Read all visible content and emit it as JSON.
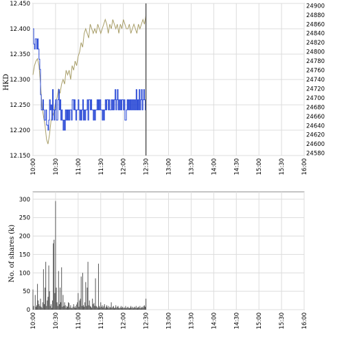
{
  "chart_data": [
    {
      "type": "line",
      "ylabel": "HKD",
      "xlabel": "",
      "x_ticks": [
        "10:00",
        "10:30",
        "11:00",
        "11:30",
        "12:00",
        "12:30",
        "13:00",
        "13:30",
        "14:00",
        "14:30",
        "15:00",
        "15:30",
        "16:00"
      ],
      "y_left_ticks": [
        "12.150",
        "12.200",
        "12.250",
        "12.300",
        "12.350",
        "12.400",
        "12.450"
      ],
      "y_right_ticks": [
        "24580",
        "24600",
        "24620",
        "24640",
        "24660",
        "24680",
        "24700",
        "24720",
        "24740",
        "24760",
        "24780",
        "24800",
        "24820",
        "24840",
        "24860",
        "24880",
        "24900"
      ],
      "ylim_left": [
        12.15,
        12.45
      ],
      "ylim_right": [
        24575,
        24905
      ],
      "xlim_minutes": [
        600,
        960
      ],
      "grid": true,
      "colors": {
        "price": "#2a4ad6",
        "index": "#a89e68",
        "axis": "#888888",
        "grid": "#dcdcdc",
        "marker": "#555555"
      },
      "series": [
        {
          "axis": "left",
          "x": [
            600,
            601,
            602,
            603,
            605,
            606,
            607,
            608,
            609,
            610,
            611,
            613,
            614,
            615,
            617,
            618,
            620,
            621,
            622,
            623,
            624,
            625,
            626,
            627,
            628,
            629,
            630,
            631,
            632,
            633,
            634,
            635,
            636,
            637,
            638,
            639,
            640,
            641,
            642,
            643,
            644,
            645,
            646,
            647,
            648,
            649,
            650,
            651,
            652,
            653,
            654,
            655,
            656,
            657,
            658,
            660,
            661,
            662,
            663,
            664,
            665,
            666,
            667,
            668,
            669,
            670,
            672,
            673,
            674,
            676,
            677,
            678,
            680,
            681,
            682,
            683,
            684,
            685,
            686,
            687,
            688,
            689,
            690,
            692,
            693,
            694,
            695,
            696,
            697,
            698,
            700,
            701,
            702,
            703,
            704,
            705,
            706,
            707,
            708,
            709,
            710,
            711,
            712,
            713,
            714,
            715,
            716,
            717,
            718,
            720,
            721,
            722,
            724,
            725,
            726,
            727,
            728,
            729,
            730,
            731,
            732,
            733,
            734,
            735,
            736,
            737,
            738,
            739,
            740,
            741,
            742,
            743,
            744,
            745,
            746,
            747,
            748,
            749,
            750
          ],
          "y": [
            12.4,
            12.37,
            12.36,
            12.38,
            12.36,
            12.38,
            12.36,
            12.34,
            12.32,
            12.27,
            12.24,
            12.26,
            12.24,
            12.22,
            12.24,
            12.21,
            12.2,
            12.22,
            12.26,
            12.24,
            12.25,
            12.22,
            12.28,
            12.24,
            12.22,
            12.24,
            12.26,
            12.22,
            12.22,
            12.26,
            12.28,
            12.24,
            12.26,
            12.22,
            12.24,
            12.22,
            12.2,
            12.22,
            12.2,
            12.24,
            12.22,
            12.24,
            12.22,
            12.24,
            12.22,
            12.24,
            12.24,
            12.22,
            12.26,
            12.26,
            12.24,
            12.26,
            12.24,
            12.22,
            12.24,
            12.26,
            12.24,
            12.22,
            12.24,
            12.22,
            12.24,
            12.26,
            12.22,
            12.24,
            12.22,
            12.24,
            12.26,
            12.22,
            12.26,
            12.24,
            12.26,
            12.24,
            12.22,
            12.24,
            12.22,
            12.24,
            12.24,
            12.26,
            12.24,
            12.26,
            12.24,
            12.26,
            12.24,
            12.22,
            12.24,
            12.22,
            12.24,
            12.26,
            12.24,
            12.26,
            12.24,
            12.26,
            12.24,
            12.24,
            12.26,
            12.24,
            12.26,
            12.24,
            12.26,
            12.28,
            12.24,
            12.26,
            12.28,
            12.24,
            12.26,
            12.24,
            12.26,
            12.24,
            12.26,
            12.24,
            12.26,
            12.22,
            12.24,
            12.26,
            12.24,
            12.26,
            12.24,
            12.26,
            12.24,
            12.26,
            12.24,
            12.26,
            12.24,
            12.26,
            12.24,
            12.28,
            12.24,
            12.26,
            12.24,
            12.28,
            12.24,
            12.26,
            12.28,
            12.24,
            12.26,
            12.28,
            12.26,
            12.24,
            12.28
          ]
        },
        {
          "axis": "right",
          "x": [
            600,
            602,
            604,
            606,
            608,
            610,
            612,
            614,
            616,
            618,
            620,
            622,
            624,
            626,
            628,
            630,
            632,
            634,
            636,
            638,
            640,
            642,
            644,
            646,
            648,
            650,
            652,
            654,
            656,
            658,
            660,
            662,
            664,
            666,
            668,
            670,
            672,
            674,
            676,
            678,
            680,
            682,
            684,
            686,
            688,
            690,
            692,
            694,
            696,
            698,
            700,
            702,
            704,
            706,
            708,
            710,
            712,
            714,
            716,
            718,
            720,
            722,
            724,
            726,
            728,
            730,
            732,
            734,
            736,
            738,
            740,
            742,
            744,
            746,
            748,
            750
          ],
          "y": [
            24750,
            24770,
            24780,
            24785,
            24770,
            24730,
            24680,
            24660,
            24640,
            24610,
            24600,
            24620,
            24650,
            24660,
            24670,
            24690,
            24700,
            24720,
            24710,
            24730,
            24740,
            24730,
            24760,
            24750,
            24760,
            24740,
            24770,
            24760,
            24780,
            24770,
            24790,
            24800,
            24820,
            24810,
            24840,
            24850,
            24840,
            24830,
            24860,
            24850,
            24840,
            24850,
            24840,
            24860,
            24850,
            24840,
            24850,
            24860,
            24870,
            24860,
            24840,
            24860,
            24850,
            24870,
            24860,
            24850,
            24860,
            24840,
            24860,
            24850,
            24870,
            24860,
            24850,
            24850,
            24860,
            24840,
            24850,
            24860,
            24850,
            24840,
            24860,
            24850,
            24860,
            24870,
            24860,
            24880
          ]
        }
      ],
      "marker_x": 750
    },
    {
      "type": "bar",
      "ylabel": "No. of shares (k)",
      "xlabel": "",
      "x_ticks": [
        "10:00",
        "10:30",
        "11:00",
        "11:30",
        "12:00",
        "12:30",
        "13:00",
        "13:30",
        "14:00",
        "14:30",
        "15:00",
        "15:30",
        "16:00"
      ],
      "y_ticks": [
        "0",
        "50",
        "100",
        "150",
        "200",
        "250",
        "300"
      ],
      "ylim": [
        0,
        320
      ],
      "xlim_minutes": [
        600,
        960
      ],
      "grid": true,
      "colors": {
        "bar": "#555555",
        "axis": "#888888",
        "grid": "#dcdcdc"
      },
      "x": [
        600,
        601,
        603,
        604,
        605,
        606,
        607,
        608,
        609,
        610,
        611,
        612,
        613,
        614,
        615,
        616,
        617,
        618,
        619,
        620,
        621,
        622,
        623,
        624,
        625,
        626,
        627,
        628,
        629,
        630,
        631,
        632,
        633,
        634,
        635,
        636,
        637,
        638,
        639,
        640,
        641,
        642,
        643,
        644,
        645,
        646,
        647,
        648,
        649,
        650,
        651,
        652,
        653,
        654,
        655,
        656,
        657,
        658,
        659,
        660,
        661,
        662,
        663,
        664,
        665,
        666,
        667,
        668,
        669,
        670,
        671,
        672,
        673,
        674,
        675,
        676,
        677,
        678,
        679,
        680,
        681,
        682,
        683,
        684,
        685,
        686,
        687,
        688,
        689,
        690,
        691,
        692,
        693,
        694,
        695,
        696,
        697,
        698,
        699,
        700,
        701,
        702,
        703,
        704,
        705,
        706,
        707,
        708,
        709,
        710,
        711,
        712,
        713,
        714,
        715,
        716,
        717,
        718,
        719,
        720,
        721,
        722,
        723,
        724,
        725,
        726,
        727,
        728,
        729,
        730,
        731,
        732,
        733,
        734,
        735,
        736,
        737,
        738,
        739,
        740,
        741,
        742,
        743,
        744,
        745,
        746,
        747,
        748,
        749,
        750
      ],
      "values": [
        55,
        10,
        40,
        8,
        12,
        70,
        25,
        15,
        10,
        30,
        8,
        5,
        20,
        110,
        15,
        60,
        130,
        10,
        25,
        35,
        120,
        50,
        10,
        15,
        5,
        25,
        180,
        190,
        45,
        295,
        60,
        20,
        10,
        105,
        15,
        60,
        20,
        115,
        8,
        40,
        10,
        20,
        12,
        5,
        10,
        8,
        20,
        18,
        6,
        12,
        5,
        4,
        8,
        15,
        6,
        10,
        5,
        14,
        20,
        45,
        8,
        25,
        30,
        90,
        10,
        100,
        12,
        8,
        20,
        75,
        10,
        60,
        130,
        12,
        25,
        10,
        8,
        5,
        30,
        15,
        18,
        10,
        85,
        10,
        8,
        5,
        125,
        10,
        6,
        20,
        8,
        12,
        6,
        10,
        15,
        4,
        8,
        12,
        6,
        10,
        4,
        8,
        6,
        20,
        5,
        8,
        10,
        4,
        6,
        12,
        5,
        8,
        10,
        5,
        4,
        6,
        10,
        5,
        8,
        4,
        6,
        5,
        10,
        4,
        6,
        8,
        5,
        4,
        6,
        10,
        5,
        8,
        4,
        6,
        8,
        5,
        10,
        4,
        6,
        8,
        5,
        10,
        4,
        6,
        8,
        5,
        10,
        12,
        8,
        30
      ]
    }
  ]
}
